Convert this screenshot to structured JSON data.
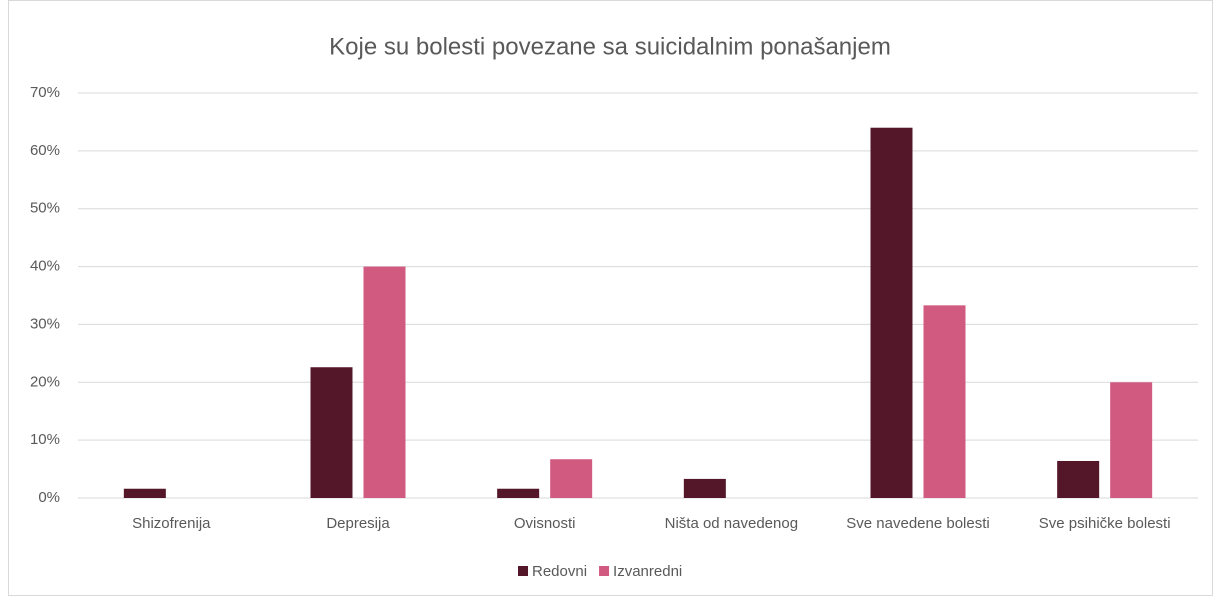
{
  "chart_data": {
    "type": "bar",
    "title": "Koje su bolesti povezane sa suicidalnim ponašanjem",
    "categories": [
      "Shizofrenija",
      "Depresija",
      "Ovisnosti",
      "Ništa od navedenog",
      "Sve navedene bolesti",
      "Sve psihičke bolesti"
    ],
    "series": [
      {
        "name": "Redovni",
        "color": "#541629",
        "values": [
          1.6,
          22.6,
          1.6,
          3.3,
          64,
          6.4
        ]
      },
      {
        "name": "Izvanredni",
        "color": "#d15b80",
        "values": [
          0,
          40,
          6.7,
          0,
          33.3,
          20
        ]
      }
    ],
    "ylim": [
      0,
      70
    ],
    "yticks": [
      {
        "value": 0,
        "label": "0%"
      },
      {
        "value": 10,
        "label": "10%"
      },
      {
        "value": 20,
        "label": "20%"
      },
      {
        "value": 30,
        "label": "30%"
      },
      {
        "value": 40,
        "label": "40%"
      },
      {
        "value": 50,
        "label": "50%"
      },
      {
        "value": 60,
        "label": "60%"
      },
      {
        "value": 70,
        "label": "70%"
      }
    ],
    "grid": true,
    "legend": "bottom"
  }
}
